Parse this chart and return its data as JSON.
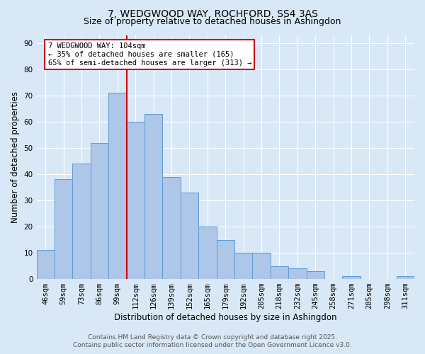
{
  "title_line1": "7, WEDGWOOD WAY, ROCHFORD, SS4 3AS",
  "title_line2": "Size of property relative to detached houses in Ashingdon",
  "xlabel": "Distribution of detached houses by size in Ashingdon",
  "ylabel": "Number of detached properties",
  "bar_labels": [
    "46sqm",
    "59sqm",
    "73sqm",
    "86sqm",
    "99sqm",
    "112sqm",
    "126sqm",
    "139sqm",
    "152sqm",
    "165sqm",
    "179sqm",
    "192sqm",
    "205sqm",
    "218sqm",
    "232sqm",
    "245sqm",
    "258sqm",
    "271sqm",
    "285sqm",
    "298sqm",
    "311sqm"
  ],
  "bar_heights": [
    11,
    38,
    44,
    52,
    71,
    60,
    63,
    39,
    33,
    20,
    15,
    10,
    10,
    5,
    4,
    3,
    0,
    1,
    0,
    0,
    1
  ],
  "bar_color": "#aec6e8",
  "bar_edge_color": "#5b9bd5",
  "vline_x": 4.5,
  "vline_color": "#cc0000",
  "annotation_text": "7 WEDGWOOD WAY: 104sqm\n← 35% of detached houses are smaller (165)\n65% of semi-detached houses are larger (313) →",
  "annotation_box_color": "#ffffff",
  "annotation_box_edge_color": "#cc0000",
  "ylim": [
    0,
    93
  ],
  "yticks": [
    0,
    10,
    20,
    30,
    40,
    50,
    60,
    70,
    80,
    90
  ],
  "bg_color": "#d9e8f6",
  "plot_bg_color": "#d9e8f6",
  "footer_line1": "Contains HM Land Registry data © Crown copyright and database right 2025.",
  "footer_line2": "Contains public sector information licensed under the Open Government Licence v3.0.",
  "grid_color": "#ffffff",
  "title_fontsize": 10,
  "subtitle_fontsize": 9,
  "axis_label_fontsize": 8.5,
  "tick_fontsize": 7.5,
  "annotation_fontsize": 7.5,
  "footer_fontsize": 6.5
}
